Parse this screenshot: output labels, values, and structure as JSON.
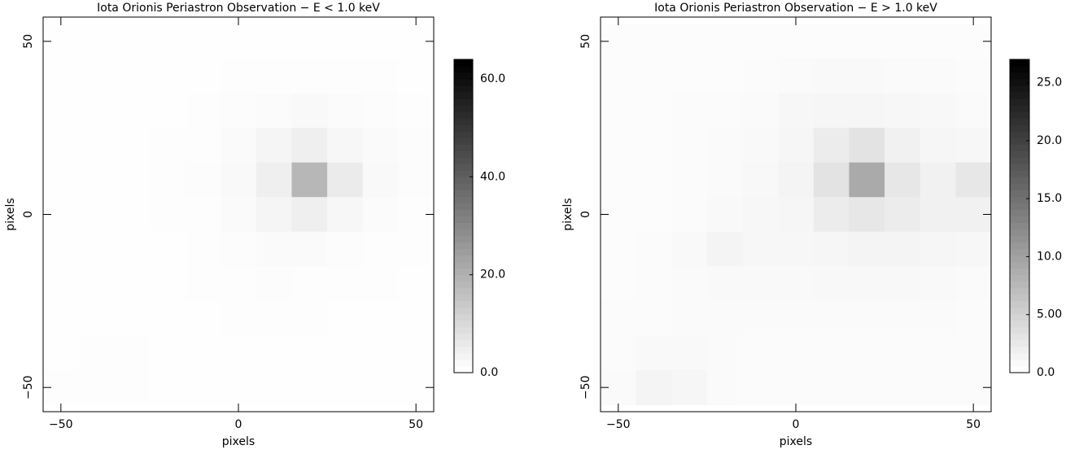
{
  "chart_data": [
    {
      "type": "heatmap",
      "title": "Iota Orionis Periastron Observation − E < 1.0 keV",
      "xlabel": "pixels",
      "ylabel": "pixels",
      "x": [
        -50,
        -40,
        -30,
        -20,
        -10,
        0,
        10,
        20,
        30,
        40,
        50
      ],
      "y": [
        50,
        40,
        30,
        20,
        10,
        0,
        -10,
        -20,
        -30,
        -40,
        -50
      ],
      "z": [
        [
          0.3,
          0.3,
          0.3,
          0.3,
          0.3,
          0.3,
          0.3,
          0.3,
          0.3,
          0.3,
          0.3
        ],
        [
          0.3,
          0.3,
          0.3,
          0.3,
          0.3,
          0.4,
          0.5,
          0.5,
          0.5,
          0.4,
          0.3
        ],
        [
          0.3,
          0.3,
          0.3,
          0.3,
          0.5,
          0.8,
          1,
          1.5,
          1,
          0.8,
          0.5
        ],
        [
          0.3,
          0.3,
          0.3,
          0.4,
          0.6,
          1.2,
          2.5,
          4,
          2,
          1.2,
          0.8
        ],
        [
          0.3,
          0.3,
          0.3,
          0.4,
          0.8,
          1.5,
          4,
          18,
          5,
          1.5,
          0.8
        ],
        [
          0.3,
          0.3,
          0.3,
          0.4,
          0.6,
          1.2,
          2.5,
          4,
          2,
          1,
          0.6
        ],
        [
          0.3,
          0.3,
          0.3,
          0.3,
          0.5,
          0.8,
          1.2,
          1.2,
          0.8,
          0.5,
          0.4
        ],
        [
          0.3,
          0.3,
          0.3,
          0.3,
          0.4,
          0.6,
          0.8,
          0.6,
          0.5,
          0.4,
          0.3
        ],
        [
          0.3,
          0.3,
          0.3,
          0.3,
          0.3,
          0.4,
          0.5,
          0.4,
          0.3,
          0.3,
          0.3
        ],
        [
          0.3,
          0.4,
          0.4,
          0.3,
          0.3,
          0.3,
          0.3,
          0.3,
          0.3,
          0.3,
          0.3
        ],
        [
          0.4,
          0.6,
          0.4,
          0.3,
          0.3,
          0.3,
          0.3,
          0.3,
          0.3,
          0.3,
          0.3
        ]
      ],
      "xlim": [
        -55,
        55
      ],
      "ylim": [
        -57,
        57
      ],
      "xticks": [
        {
          "value": -50,
          "label": "−50"
        },
        0,
        50
      ],
      "yticks": [
        {
          "value": -50,
          "label": "−50"
        },
        0,
        50
      ],
      "zlim": [
        0,
        64
      ],
      "zticks": [
        {
          "value": 0,
          "label": "0.0"
        },
        {
          "value": 20,
          "label": "20.0"
        },
        {
          "value": 40,
          "label": "40.0"
        },
        {
          "value": 60,
          "label": "60.0"
        }
      ],
      "low_color": "#ffffff",
      "high_color": "#000000"
    },
    {
      "type": "heatmap",
      "title": "Iota Orionis Periastron Observation − E > 1.0 keV",
      "xlabel": "pixels",
      "ylabel": "pixels",
      "x": [
        -50,
        -40,
        -30,
        -20,
        -10,
        0,
        10,
        20,
        30,
        40,
        50
      ],
      "y": [
        50,
        40,
        30,
        20,
        10,
        0,
        -10,
        -20,
        -30,
        -40,
        -50
      ],
      "z": [
        [
          0.3,
          0.3,
          0.3,
          0.3,
          0.3,
          0.3,
          0.3,
          0.3,
          0.3,
          0.3,
          0.3
        ],
        [
          0.3,
          0.3,
          0.3,
          0.3,
          0.4,
          0.5,
          0.6,
          0.6,
          0.5,
          0.5,
          0.4
        ],
        [
          0.3,
          0.3,
          0.4,
          0.4,
          0.5,
          0.8,
          1,
          1,
          0.8,
          0.7,
          0.5
        ],
        [
          0.3,
          0.3,
          0.4,
          0.5,
          0.6,
          1,
          2,
          3,
          1.5,
          1,
          0.8
        ],
        [
          0.3,
          0.3,
          0.4,
          0.5,
          0.7,
          1.2,
          3,
          9,
          2.5,
          1.5,
          2.5
        ],
        [
          0.3,
          0.3,
          0.4,
          0.6,
          0.8,
          1,
          2,
          2.5,
          2,
          1.5,
          1.5
        ],
        [
          0.3,
          0.4,
          0.6,
          1.2,
          0.8,
          0.8,
          1,
          1.2,
          1.2,
          1,
          0.8
        ],
        [
          0.3,
          0.4,
          0.5,
          0.6,
          0.6,
          0.6,
          0.7,
          0.7,
          0.7,
          0.6,
          0.5
        ],
        [
          0.4,
          0.4,
          0.5,
          0.5,
          0.5,
          0.5,
          0.5,
          0.5,
          0.5,
          0.5,
          0.4
        ],
        [
          0.4,
          0.6,
          0.6,
          0.5,
          0.4,
          0.4,
          0.4,
          0.4,
          0.4,
          0.4,
          0.4
        ],
        [
          0.5,
          1.2,
          1,
          0.5,
          0.4,
          0.4,
          0.4,
          0.4,
          0.4,
          0.4,
          0.4
        ]
      ],
      "xlim": [
        -55,
        55
      ],
      "ylim": [
        -57,
        57
      ],
      "xticks": [
        {
          "value": -50,
          "label": "−50"
        },
        0,
        50
      ],
      "yticks": [
        {
          "value": -50,
          "label": "−50"
        },
        0,
        50
      ],
      "zlim": [
        0,
        27
      ],
      "zticks": [
        {
          "value": 0,
          "label": "0.0"
        },
        {
          "value": 5,
          "label": "5.00"
        },
        {
          "value": 10,
          "label": "10.0"
        },
        {
          "value": 15,
          "label": "15.0"
        },
        {
          "value": 20,
          "label": "20.0"
        },
        {
          "value": 25,
          "label": "25.0"
        }
      ],
      "low_color": "#ffffff",
      "high_color": "#000000"
    }
  ]
}
